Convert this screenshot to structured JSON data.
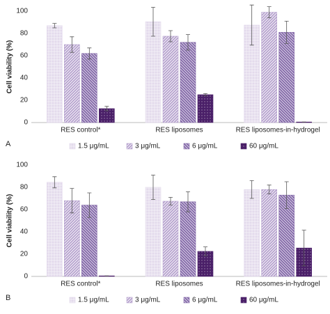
{
  "chart_data": [
    {
      "type": "bar",
      "panel": "A",
      "ylabel": "Cell viability (%)",
      "categories": [
        "RES control*",
        "RES liposomes",
        "RES liposomes-in-hydrogel"
      ],
      "ylim": [
        0,
        100
      ],
      "yticks": [
        0,
        20,
        40,
        60,
        80,
        100
      ],
      "grid": false,
      "series": [
        {
          "name": "1.5 μg/mL",
          "color": "#e3daec",
          "values": [
            87,
            90.5,
            87.5
          ],
          "errors": [
            2,
            13,
            18
          ]
        },
        {
          "name": "3 μg/mL",
          "color": "#b7a3cf",
          "values": [
            70,
            77.5,
            99
          ],
          "errors": [
            7,
            5,
            5
          ]
        },
        {
          "name": "6 μg/mL",
          "color": "#8469a9",
          "values": [
            62,
            72,
            81
          ],
          "errors": [
            5,
            7,
            10
          ]
        },
        {
          "name": "60 μg/mL",
          "color": "#4a1f68",
          "values": [
            12.5,
            25,
            0.5
          ],
          "errors": [
            2,
            1,
            0
          ]
        }
      ]
    },
    {
      "type": "bar",
      "panel": "B",
      "ylabel": "Cell viability (%)",
      "categories": [
        "RES control*",
        "RES liposomes",
        "RES liposomes-in-hydrogel"
      ],
      "ylim": [
        0,
        100
      ],
      "yticks": [
        0,
        20,
        40,
        60,
        80,
        100
      ],
      "grid": false,
      "series": [
        {
          "name": "1.5 μg/mL",
          "color": "#e3daec",
          "values": [
            84.5,
            80,
            78
          ],
          "errors": [
            5,
            11,
            8
          ]
        },
        {
          "name": "3 μg/mL",
          "color": "#b7a3cf",
          "values": [
            68,
            67.5,
            78
          ],
          "errors": [
            11,
            3.5,
            4
          ]
        },
        {
          "name": "6 μg/mL",
          "color": "#8469a9",
          "values": [
            64,
            67,
            73
          ],
          "errors": [
            11,
            9,
            12
          ]
        },
        {
          "name": "60 μg/mL",
          "color": "#4a1f68",
          "values": [
            0.5,
            22.5,
            25.5
          ],
          "errors": [
            0,
            4,
            16
          ]
        }
      ]
    }
  ]
}
